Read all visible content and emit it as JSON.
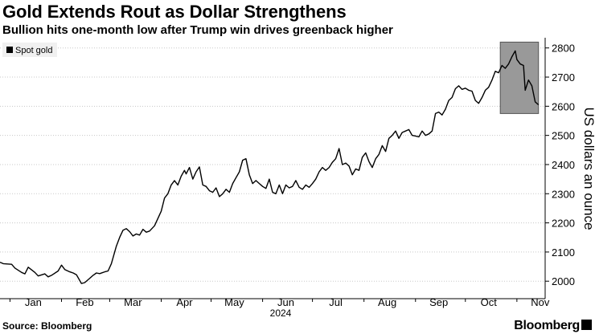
{
  "header": {
    "title": "Gold Extends Rout as Dollar Strengthens",
    "subtitle": "Bullion hits one-month low after Trump win drives greenback higher"
  },
  "footer": {
    "source": "Source: Bloomberg",
    "brand": "Bloomberg"
  },
  "chart_data": {
    "type": "line",
    "title": "Gold Extends Rout as Dollar Strengthens",
    "subtitle": "Bullion hits one-month low after Trump win drives greenback higher",
    "ylabel": "US dollars an ounce",
    "xlabel": "2024",
    "ylim": [
      1940,
      2835
    ],
    "y_ticks": [
      2000,
      2100,
      2200,
      2300,
      2400,
      2500,
      2600,
      2700,
      2800
    ],
    "y_axis_side": "right",
    "grid": "horizontal dotted",
    "legend": {
      "placement": "top-left",
      "entries": [
        "Spot gold"
      ]
    },
    "month_labels": [
      {
        "label": "Jan",
        "x": "2024-01-15"
      },
      {
        "label": "Feb",
        "x": "2024-02-15"
      },
      {
        "label": "Mar",
        "x": "2024-03-15"
      },
      {
        "label": "Apr",
        "x": "2024-04-15"
      },
      {
        "label": "May",
        "x": "2024-05-15"
      },
      {
        "label": "Jun",
        "x": "2024-06-15"
      },
      {
        "label": "Jul",
        "x": "2024-07-15"
      },
      {
        "label": "Aug",
        "x": "2024-08-15"
      },
      {
        "label": "Sep",
        "x": "2024-09-15"
      },
      {
        "label": "Oct",
        "x": "2024-10-15"
      },
      {
        "label": "Nov",
        "x": "2024-11-15"
      }
    ],
    "highlight": {
      "x_start": "2024-10-22",
      "x_end": "2024-11-14",
      "y_start": 2575,
      "y_end": 2820,
      "color": "#999999"
    },
    "colors": {
      "line": "#000000",
      "highlight": "#999999"
    },
    "series": [
      {
        "name": "Spot gold",
        "points": [
          [
            "2023-12-26",
            2065
          ],
          [
            "2023-12-28",
            2060
          ],
          [
            "2024-01-02",
            2058
          ],
          [
            "2024-01-04",
            2045
          ],
          [
            "2024-01-08",
            2030
          ],
          [
            "2024-01-10",
            2025
          ],
          [
            "2024-01-12",
            2048
          ],
          [
            "2024-01-16",
            2030
          ],
          [
            "2024-01-18",
            2018
          ],
          [
            "2024-01-22",
            2025
          ],
          [
            "2024-01-24",
            2015
          ],
          [
            "2024-01-26",
            2020
          ],
          [
            "2024-01-30",
            2035
          ],
          [
            "2024-02-01",
            2055
          ],
          [
            "2024-02-03",
            2040
          ],
          [
            "2024-02-06",
            2032
          ],
          [
            "2024-02-08",
            2028
          ],
          [
            "2024-02-10",
            2022
          ],
          [
            "2024-02-13",
            1992
          ],
          [
            "2024-02-15",
            1995
          ],
          [
            "2024-02-17",
            2005
          ],
          [
            "2024-02-20",
            2020
          ],
          [
            "2024-02-22",
            2028
          ],
          [
            "2024-02-24",
            2026
          ],
          [
            "2024-02-27",
            2032
          ],
          [
            "2024-02-29",
            2035
          ],
          [
            "2024-03-02",
            2060
          ],
          [
            "2024-03-05",
            2120
          ],
          [
            "2024-03-07",
            2150
          ],
          [
            "2024-03-09",
            2175
          ],
          [
            "2024-03-11",
            2180
          ],
          [
            "2024-03-13",
            2170
          ],
          [
            "2024-03-15",
            2155
          ],
          [
            "2024-03-17",
            2162
          ],
          [
            "2024-03-19",
            2158
          ],
          [
            "2024-03-21",
            2178
          ],
          [
            "2024-03-23",
            2168
          ],
          [
            "2024-03-25",
            2172
          ],
          [
            "2024-03-28",
            2190
          ],
          [
            "2024-04-01",
            2240
          ],
          [
            "2024-04-03",
            2285
          ],
          [
            "2024-04-05",
            2300
          ],
          [
            "2024-04-07",
            2330
          ],
          [
            "2024-04-09",
            2345
          ],
          [
            "2024-04-11",
            2330
          ],
          [
            "2024-04-13",
            2360
          ],
          [
            "2024-04-15",
            2380
          ],
          [
            "2024-04-16",
            2368
          ],
          [
            "2024-04-18",
            2390
          ],
          [
            "2024-04-20",
            2350
          ],
          [
            "2024-04-22",
            2375
          ],
          [
            "2024-04-24",
            2392
          ],
          [
            "2024-04-26",
            2330
          ],
          [
            "2024-04-28",
            2325
          ],
          [
            "2024-04-30",
            2310
          ],
          [
            "2024-05-02",
            2305
          ],
          [
            "2024-05-04",
            2320
          ],
          [
            "2024-05-06",
            2290
          ],
          [
            "2024-05-08",
            2300
          ],
          [
            "2024-05-10",
            2315
          ],
          [
            "2024-05-12",
            2305
          ],
          [
            "2024-05-14",
            2335
          ],
          [
            "2024-05-16",
            2355
          ],
          [
            "2024-05-18",
            2375
          ],
          [
            "2024-05-20",
            2415
          ],
          [
            "2024-05-22",
            2420
          ],
          [
            "2024-05-24",
            2365
          ],
          [
            "2024-05-26",
            2335
          ],
          [
            "2024-05-28",
            2345
          ],
          [
            "2024-05-30",
            2335
          ],
          [
            "2024-06-01",
            2325
          ],
          [
            "2024-06-03",
            2318
          ],
          [
            "2024-06-05",
            2350
          ],
          [
            "2024-06-07",
            2305
          ],
          [
            "2024-06-09",
            2300
          ],
          [
            "2024-06-11",
            2330
          ],
          [
            "2024-06-13",
            2300
          ],
          [
            "2024-06-15",
            2330
          ],
          [
            "2024-06-17",
            2320
          ],
          [
            "2024-06-19",
            2325
          ],
          [
            "2024-06-21",
            2345
          ],
          [
            "2024-06-23",
            2322
          ],
          [
            "2024-06-25",
            2315
          ],
          [
            "2024-06-27",
            2330
          ],
          [
            "2024-06-29",
            2322
          ],
          [
            "2024-07-01",
            2335
          ],
          [
            "2024-07-03",
            2350
          ],
          [
            "2024-07-05",
            2375
          ],
          [
            "2024-07-07",
            2390
          ],
          [
            "2024-07-09",
            2380
          ],
          [
            "2024-07-11",
            2390
          ],
          [
            "2024-07-13",
            2408
          ],
          [
            "2024-07-15",
            2420
          ],
          [
            "2024-07-17",
            2455
          ],
          [
            "2024-07-19",
            2400
          ],
          [
            "2024-07-21",
            2405
          ],
          [
            "2024-07-23",
            2395
          ],
          [
            "2024-07-25",
            2365
          ],
          [
            "2024-07-27",
            2385
          ],
          [
            "2024-07-29",
            2380
          ],
          [
            "2024-07-31",
            2425
          ],
          [
            "2024-08-02",
            2440
          ],
          [
            "2024-08-04",
            2410
          ],
          [
            "2024-08-06",
            2390
          ],
          [
            "2024-08-08",
            2420
          ],
          [
            "2024-08-10",
            2435
          ],
          [
            "2024-08-12",
            2465
          ],
          [
            "2024-08-14",
            2445
          ],
          [
            "2024-08-16",
            2490
          ],
          [
            "2024-08-18",
            2500
          ],
          [
            "2024-08-20",
            2515
          ],
          [
            "2024-08-22",
            2490
          ],
          [
            "2024-08-24",
            2510
          ],
          [
            "2024-08-26",
            2515
          ],
          [
            "2024-08-28",
            2520
          ],
          [
            "2024-08-30",
            2500
          ],
          [
            "2024-09-01",
            2498
          ],
          [
            "2024-09-03",
            2495
          ],
          [
            "2024-09-05",
            2515
          ],
          [
            "2024-09-07",
            2500
          ],
          [
            "2024-09-09",
            2505
          ],
          [
            "2024-09-11",
            2515
          ],
          [
            "2024-09-13",
            2575
          ],
          [
            "2024-09-15",
            2580
          ],
          [
            "2024-09-17",
            2570
          ],
          [
            "2024-09-19",
            2590
          ],
          [
            "2024-09-21",
            2620
          ],
          [
            "2024-09-23",
            2630
          ],
          [
            "2024-09-25",
            2660
          ],
          [
            "2024-09-27",
            2670
          ],
          [
            "2024-09-29",
            2658
          ],
          [
            "2024-10-01",
            2662
          ],
          [
            "2024-10-03",
            2655
          ],
          [
            "2024-10-05",
            2652
          ],
          [
            "2024-10-07",
            2620
          ],
          [
            "2024-10-09",
            2610
          ],
          [
            "2024-10-11",
            2630
          ],
          [
            "2024-10-13",
            2655
          ],
          [
            "2024-10-15",
            2665
          ],
          [
            "2024-10-17",
            2690
          ],
          [
            "2024-10-19",
            2720
          ],
          [
            "2024-10-21",
            2715
          ],
          [
            "2024-10-23",
            2740
          ],
          [
            "2024-10-25",
            2730
          ],
          [
            "2024-10-27",
            2745
          ],
          [
            "2024-10-29",
            2770
          ],
          [
            "2024-10-31",
            2790
          ],
          [
            "2024-11-01",
            2760
          ],
          [
            "2024-11-03",
            2745
          ],
          [
            "2024-11-05",
            2740
          ],
          [
            "2024-11-06",
            2655
          ],
          [
            "2024-11-08",
            2690
          ],
          [
            "2024-11-10",
            2670
          ],
          [
            "2024-11-12",
            2615
          ],
          [
            "2024-11-14",
            2605
          ]
        ]
      }
    ]
  }
}
